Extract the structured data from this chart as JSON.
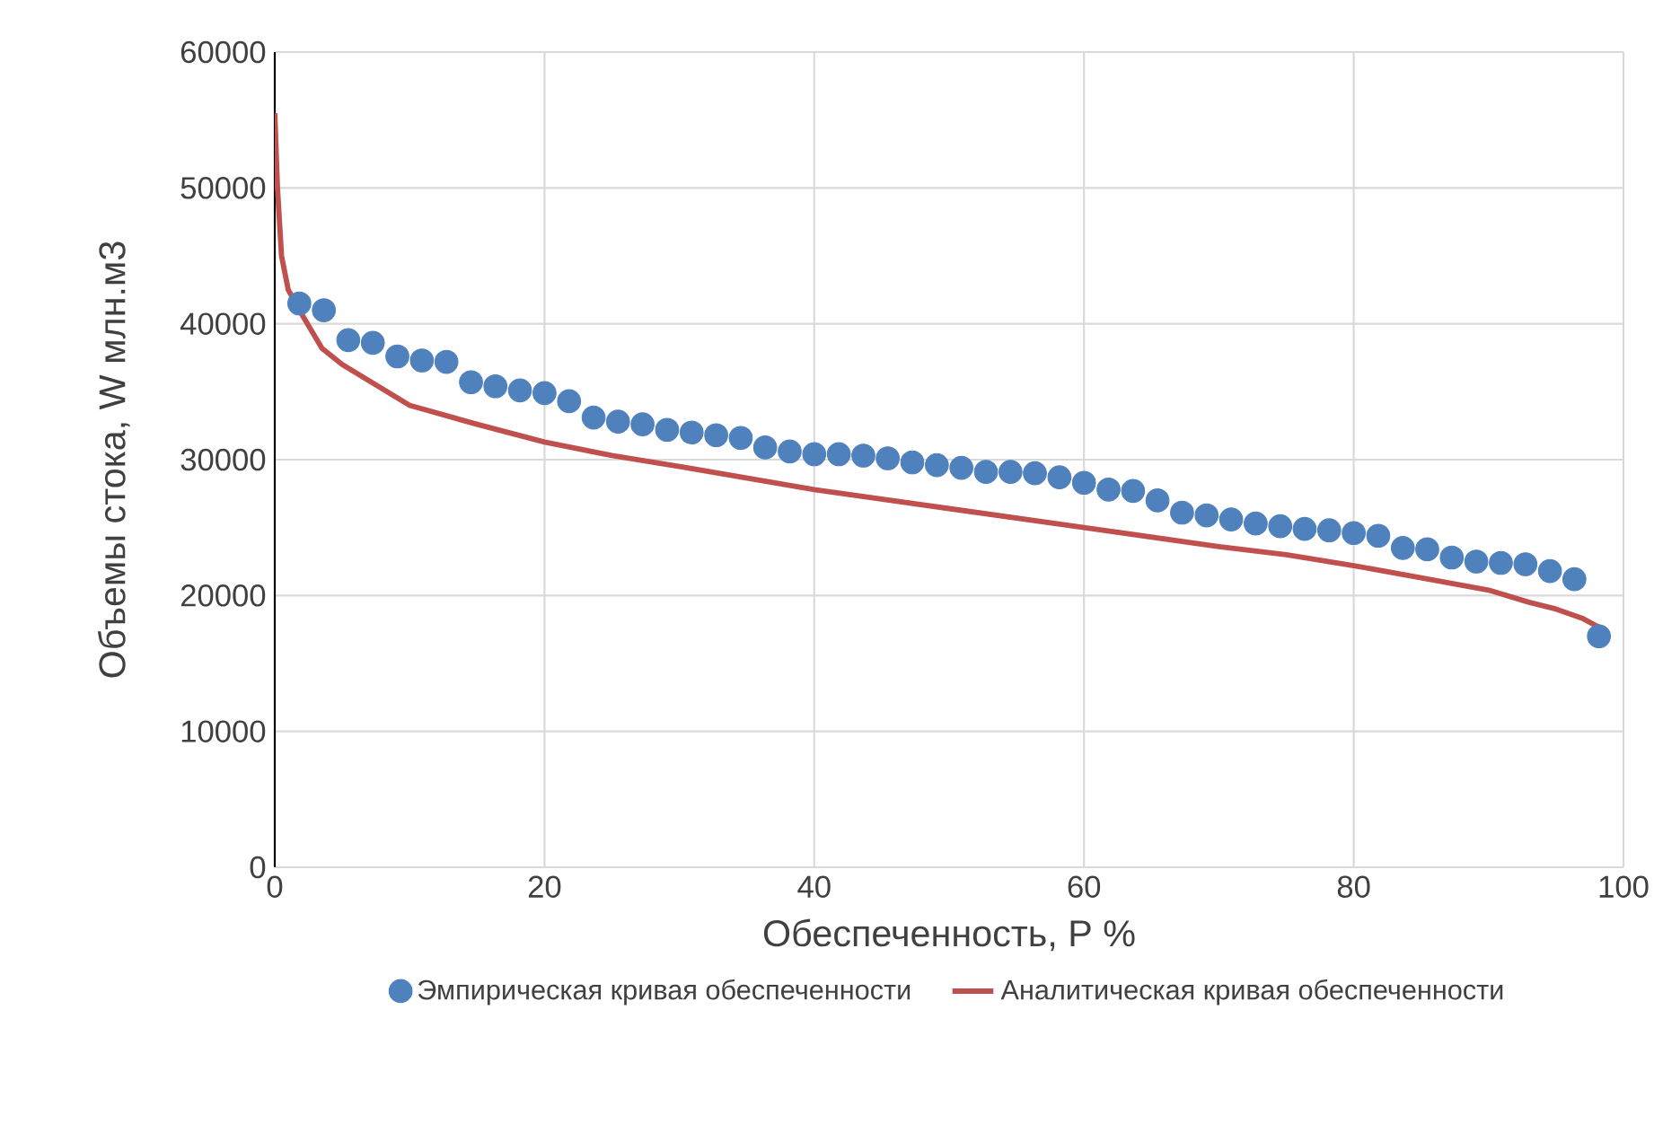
{
  "chart_data": {
    "type": "scatter",
    "xlabel": "Обеспеченность, P %",
    "ylabel": "Объемы стока, W млн.м3",
    "xlim": [
      0,
      100
    ],
    "xticks": [
      0,
      20,
      40,
      60,
      80,
      100
    ],
    "ylim": [
      0,
      60000
    ],
    "yticks": [
      0,
      10000,
      20000,
      30000,
      40000,
      50000,
      60000
    ],
    "grid": true,
    "legend": "bottom",
    "series": [
      {
        "name": "Эмпирическая кривая обеспеченности",
        "marker": "circle",
        "color": "#4f81bd",
        "x": [
          1.82,
          3.64,
          5.45,
          7.27,
          9.09,
          10.91,
          12.73,
          14.55,
          16.36,
          18.18,
          20.0,
          21.82,
          23.64,
          25.45,
          27.27,
          29.09,
          30.91,
          32.73,
          34.55,
          36.36,
          38.18,
          40.0,
          41.82,
          43.64,
          45.45,
          47.27,
          49.09,
          50.91,
          52.73,
          54.55,
          56.36,
          58.18,
          60.0,
          61.82,
          63.64,
          65.45,
          67.27,
          69.09,
          70.91,
          72.73,
          74.55,
          76.36,
          78.18,
          80.0,
          81.82,
          83.64,
          85.45,
          87.27,
          89.09,
          90.91,
          92.73,
          94.55,
          96.36,
          98.18
        ],
        "values": [
          41500,
          41000,
          38800,
          38600,
          37600,
          37300,
          37200,
          35700,
          35400,
          35100,
          34900,
          34300,
          33100,
          32800,
          32600,
          32200,
          32000,
          31800,
          31600,
          30900,
          30600,
          30400,
          30400,
          30300,
          30100,
          29800,
          29600,
          29400,
          29100,
          29100,
          29000,
          28700,
          28300,
          27800,
          27700,
          27000,
          26100,
          25900,
          25600,
          25300,
          25100,
          24900,
          24800,
          24600,
          24400,
          23500,
          23400,
          22800,
          22500,
          22400,
          22300,
          21800,
          21200,
          17000
        ]
      },
      {
        "name": "Аналитическая кривая обеспеченности",
        "type": "line",
        "marker": "none",
        "line_style": "solid",
        "color": "#c0504d",
        "x": [
          0,
          0.2,
          0.5,
          1,
          2,
          3.5,
          5,
          10,
          15,
          20,
          25,
          30,
          40,
          50,
          60,
          70,
          75,
          80,
          85,
          90,
          93,
          95,
          97,
          98.5
        ],
        "values": [
          55500,
          50000,
          45000,
          42500,
          40700,
          38200,
          37000,
          34000,
          32600,
          31300,
          30300,
          29500,
          27800,
          26400,
          25000,
          23600,
          23000,
          22200,
          21300,
          20400,
          19500,
          19000,
          18300,
          17500
        ]
      }
    ]
  }
}
